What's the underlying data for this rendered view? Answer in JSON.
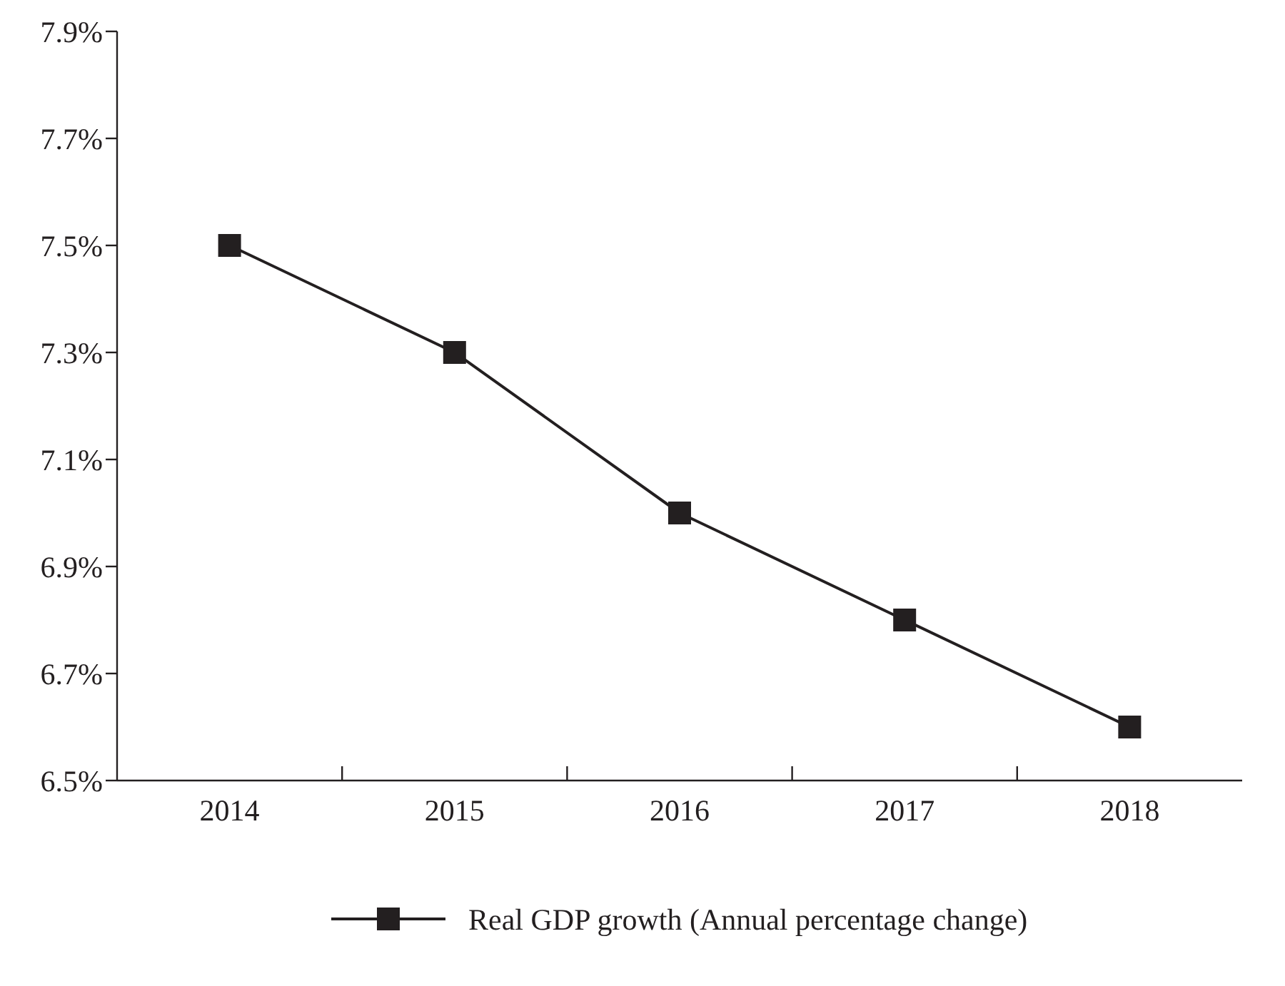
{
  "chart_data": {
    "type": "line",
    "categories": [
      "2014",
      "2015",
      "2016",
      "2017",
      "2018"
    ],
    "series": [
      {
        "name": "Real GDP growth (Annual percentage change)",
        "color": "#231f20",
        "values": [
          7.5,
          7.3,
          7.0,
          6.8,
          6.6
        ]
      }
    ],
    "ylim": [
      6.5,
      7.9
    ],
    "yticks": [
      {
        "value": 6.5,
        "label": "6.5%"
      },
      {
        "value": 6.7,
        "label": "6.7%"
      },
      {
        "value": 6.9,
        "label": "6.9%"
      },
      {
        "value": 7.1,
        "label": "7.1%"
      },
      {
        "value": 7.3,
        "label": "7.3%"
      },
      {
        "value": 7.5,
        "label": "7.5%"
      },
      {
        "value": 7.7,
        "label": "7.7%"
      },
      {
        "value": 7.9,
        "label": "7.9%"
      }
    ],
    "marker": "square",
    "line_style": "solid",
    "grid": false,
    "legend": "bottom"
  }
}
